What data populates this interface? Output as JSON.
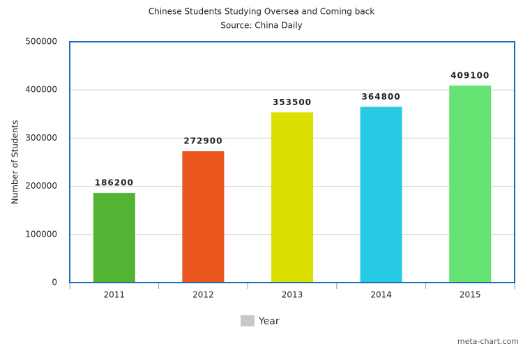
{
  "chart_data": {
    "type": "bar",
    "title": "Chinese Students Studying Oversea and Coming back",
    "subtitle": "Source: China Daily",
    "y_label": "Number of Students",
    "categories": [
      "2011",
      "2012",
      "2013",
      "2014",
      "2015"
    ],
    "series": [
      {
        "name": "Year",
        "color": "#c8c8c8",
        "values": [
          186200,
          272900,
          353500,
          364800,
          409100
        ]
      }
    ],
    "colors": [
      "#52b432",
      "#ea561e",
      "#dce000",
      "#26cbe3",
      "#66e473"
    ],
    "ylim": [
      0,
      500000
    ],
    "yticks": [
      0,
      100000,
      200000,
      300000,
      400000,
      500000
    ],
    "grid": true,
    "watermark": "meta-chart.com"
  }
}
